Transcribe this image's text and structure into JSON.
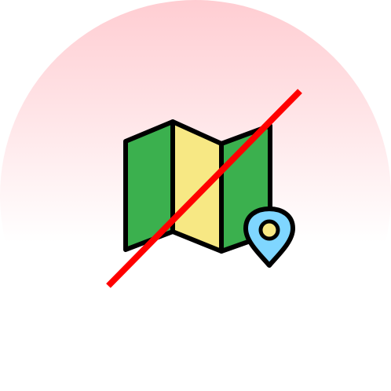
{
  "icon": {
    "name": "no-map-icon",
    "subject": "folded-map-with-location-pin",
    "status": "prohibited"
  },
  "colors": {
    "background_top": "#ffcdd2",
    "background_bottom": "#ffffff",
    "map_outer_panels": "#3bb04e",
    "map_middle_panel": "#f7e884",
    "outline": "#000000",
    "pin_fill": "#7fd6ff",
    "pin_center": "#f7e884",
    "strike_line": "#ff0000"
  }
}
